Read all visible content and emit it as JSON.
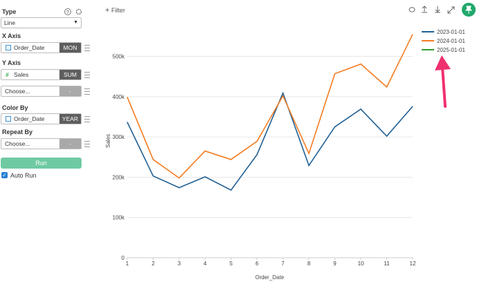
{
  "sidebar": {
    "type": {
      "label": "Type",
      "value": "Line"
    },
    "x_axis": {
      "label": "X Axis",
      "field": "Order_Date",
      "agg": "MON"
    },
    "y_axis": {
      "label": "Y Axis",
      "field": "Sales",
      "agg": "SUM",
      "extra_field": "Choose...",
      "extra_agg": "-"
    },
    "color_by": {
      "label": "Color By",
      "field": "Order_Date",
      "agg": "YEAR"
    },
    "repeat_by": {
      "label": "Repeat By",
      "field": "Choose...",
      "agg": "-"
    },
    "run": "Run",
    "auto_run": "Auto Run"
  },
  "toolbar": {
    "filter": "Filter"
  },
  "chart_data": {
    "type": "line",
    "x_label": "Order_Date",
    "y_label": "Sales",
    "x": [
      1,
      2,
      3,
      4,
      5,
      6,
      7,
      8,
      9,
      10,
      11,
      12
    ],
    "xlim": [
      1,
      12
    ],
    "xticks": [
      1,
      2,
      3,
      4,
      5,
      6,
      7,
      8,
      9,
      10,
      11,
      12
    ],
    "ylim": [
      0,
      580000
    ],
    "yticks": [
      0,
      {
        "value": 100000,
        "label": "100k"
      },
      {
        "value": 200000,
        "label": "200k"
      },
      {
        "value": 300000,
        "label": "300k"
      },
      {
        "value": 400000,
        "label": "400k"
      },
      {
        "value": 500000,
        "label": "500k"
      }
    ],
    "grid": true,
    "legend": "top-right",
    "series": [
      {
        "name": "2023-01-01",
        "color": "#1f5f94",
        "values": [
          337000,
          203000,
          174000,
          201000,
          168000,
          256000,
          409000,
          229000,
          325000,
          369000,
          302000,
          376000
        ]
      },
      {
        "name": "2024-01-01",
        "color": "#f47b20",
        "values": [
          399000,
          244000,
          198000,
          265000,
          244000,
          289000,
          402000,
          259000,
          457000,
          481000,
          424000,
          555000
        ]
      },
      {
        "name": "2025-01-01",
        "color": "#2ca02c",
        "values": [
          null,
          null,
          null,
          null,
          null,
          null,
          null,
          null,
          null,
          null,
          null,
          null
        ]
      }
    ]
  }
}
